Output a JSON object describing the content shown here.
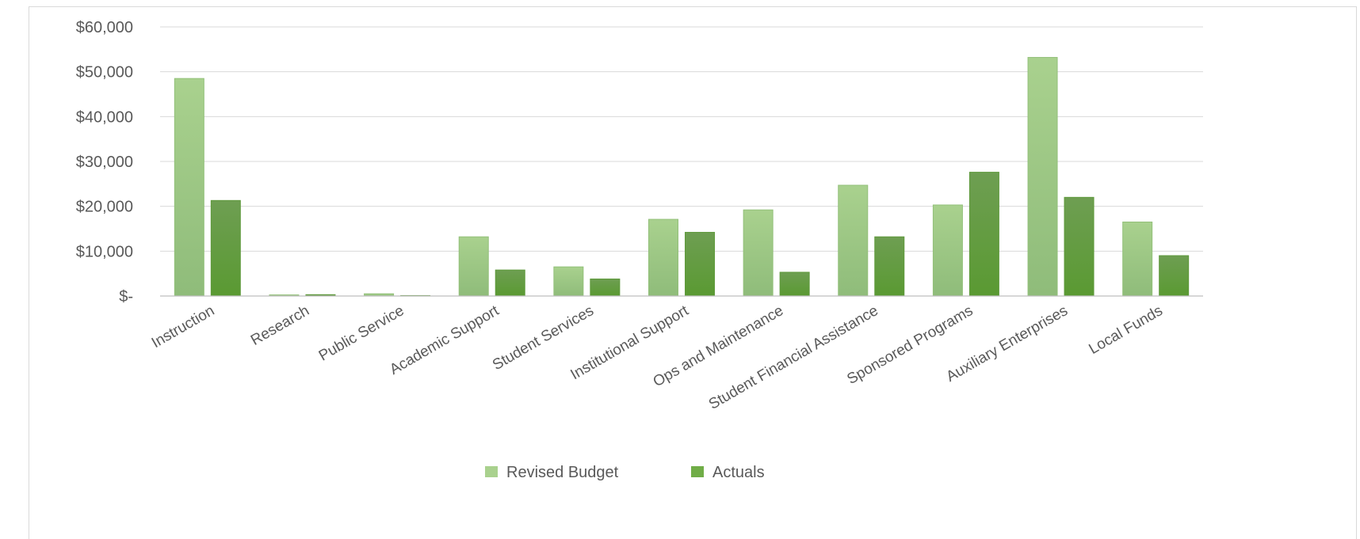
{
  "chart_data": {
    "type": "bar",
    "title": "",
    "xlabel": "",
    "ylabel": "",
    "ylim": [
      0,
      60000
    ],
    "yticks": [
      0,
      10000,
      20000,
      30000,
      40000,
      50000,
      60000
    ],
    "ytick_labels": [
      "$-",
      "$10,000",
      "$20,000",
      "$30,000",
      "$40,000",
      "$50,000",
      "$60,000"
    ],
    "grid": true,
    "legend_position": "bottom",
    "categories": [
      "Instruction",
      "Research",
      "Public Service",
      "Academic Support",
      "Student Services",
      "Institutional Support",
      "Ops and Maintenance",
      "Student Financial Assistance",
      "Sponsored Programs",
      "Auxiliary Enterprises",
      "Local Funds"
    ],
    "series": [
      {
        "name": "Revised Budget",
        "color": "#a9d18e",
        "values": [
          48500,
          250,
          500,
          13200,
          6500,
          17100,
          19200,
          24700,
          20300,
          53200,
          16500
        ]
      },
      {
        "name": "Actuals",
        "color": "#70ad47",
        "values": [
          21300,
          300,
          100,
          5800,
          3800,
          14200,
          5300,
          13200,
          27600,
          22000,
          9000
        ]
      }
    ]
  }
}
